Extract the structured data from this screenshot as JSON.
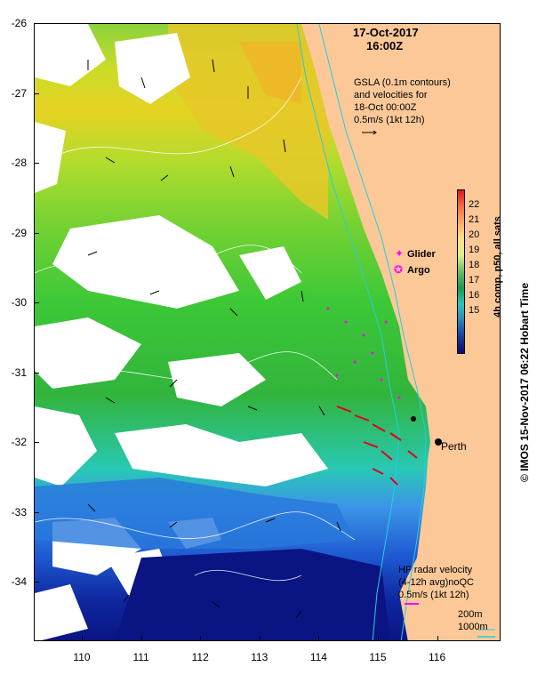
{
  "header": {
    "date": "17-Oct-2017",
    "time": "16:00Z"
  },
  "gsla_note": {
    "line1": "GSLA (0.1m contours)",
    "line2": "and velocities for",
    "line3": "18-Oct 00:00Z",
    "line4": "0.5m/s (1kt 12h)"
  },
  "legend": {
    "glider": "Glider",
    "argo": "Argo",
    "glider_color": "#ff00ff",
    "argo_color": "#ff00ff"
  },
  "colorbar": {
    "title": "4h comp, p50, all sats",
    "ticks": [
      "22",
      "21",
      "20",
      "19",
      "18",
      "17",
      "16",
      "15"
    ],
    "colors": [
      "#d7191c",
      "#f46d43",
      "#fdae61",
      "#fee08b",
      "#d9ef8b",
      "#66bd63",
      "#1a9850",
      "#2ec4b6",
      "#2b83ba",
      "#1a3a9c",
      "#0a0a6e"
    ]
  },
  "city": {
    "name": "Perth"
  },
  "hf_note": {
    "line1": "HF radar velocity",
    "line2": "(4-12h avg)noQC",
    "line3": "0.5m/s (1kt 12h)"
  },
  "isobath": {
    "shallow": "200m",
    "deep": "1000m",
    "color": "#20d0e0"
  },
  "axes": {
    "lat_ticks": [
      "-26",
      "-27",
      "-28",
      "-29",
      "-30",
      "-31",
      "-32",
      "-33",
      "-34"
    ],
    "lon_ticks": [
      "110",
      "111",
      "112",
      "113",
      "114",
      "115",
      "116"
    ]
  },
  "credit": "© IMOS 15-Nov-2017 06:22 Hobart Time",
  "colors": {
    "land": "#fcc898",
    "cloud": "#ffffff",
    "vector": "#000000",
    "radar": "#e0001a"
  }
}
